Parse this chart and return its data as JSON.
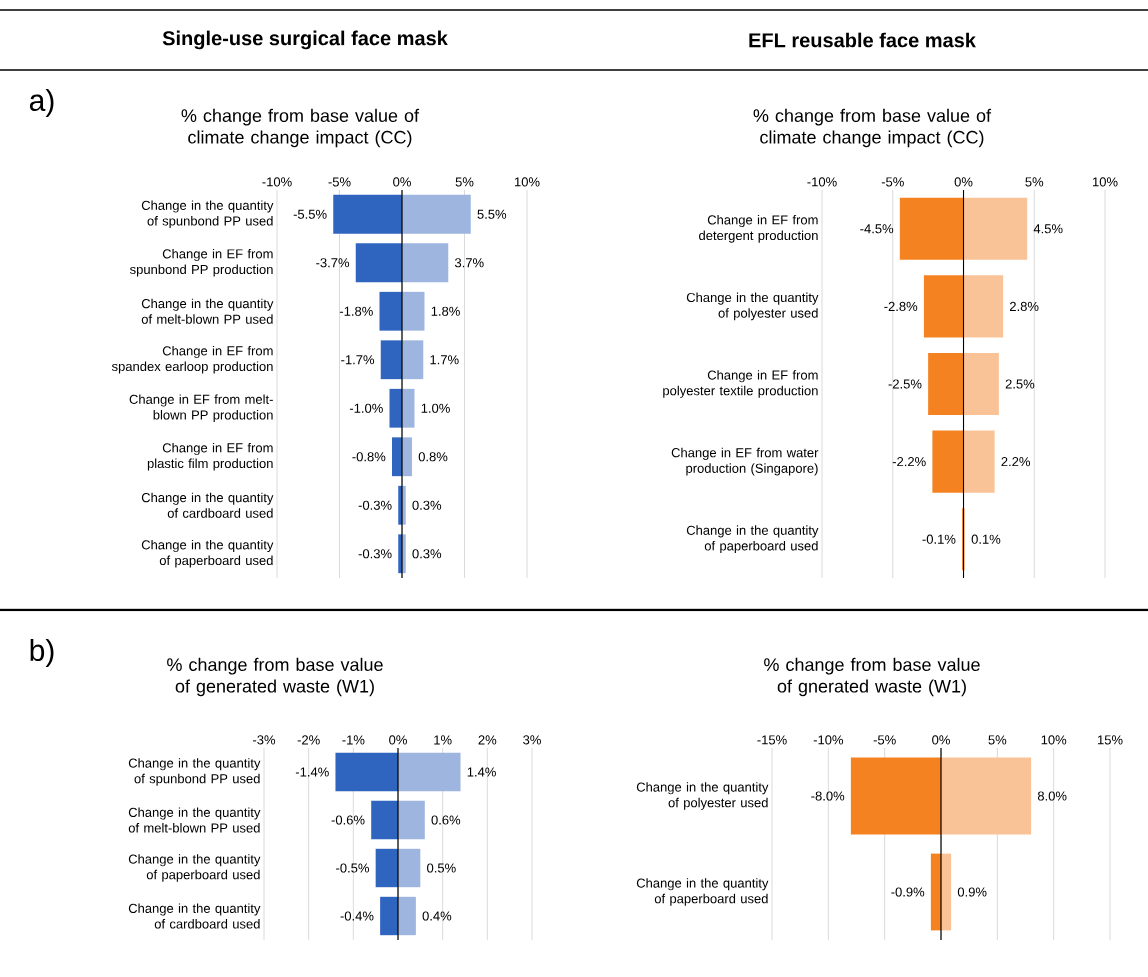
{
  "chart_data": [
    {
      "type": "bar",
      "orientation": "horizontal",
      "stacked": true,
      "title": "% change from base value of climate change impact (CC)",
      "annotations": [
        "a)",
        "Single-use surgical face mask"
      ],
      "categories": [
        "Change in the quantity of spunbond PP used",
        "Change in EF from spunbond PP production",
        "Change in the quantity of melt-blown PP used",
        "Change in EF from spandex earloop production",
        "Change in EF from melt-blown PP production",
        "Change in EF from plastic film production",
        "Change in the quantity of cardboard used",
        "Change in the quantity of paperboard used"
      ],
      "xlim": [
        -10,
        10
      ],
      "xticks": [
        {
          "value": -10,
          "label": "-10%"
        },
        {
          "value": -5,
          "label": "-5%"
        },
        {
          "value": 0,
          "label": "0%"
        },
        {
          "value": 5,
          "label": "5%"
        },
        {
          "value": 10,
          "label": "10%"
        }
      ],
      "grid": "x",
      "series": [
        {
          "color": "#2f64bf",
          "values": [
            -5.5,
            -3.7,
            -1.8,
            -1.7,
            -1.0,
            -0.8,
            -0.3,
            -0.3
          ],
          "value_labels": [
            "-5.5%",
            "-3.7%",
            "-1.8%",
            "-1.7%",
            "-1.0%",
            "-0.8%",
            "-0.3%",
            "-0.3%"
          ]
        },
        {
          "color": "#9db5df",
          "values": [
            5.5,
            3.7,
            1.8,
            1.7,
            1.0,
            0.8,
            0.3,
            0.3
          ],
          "value_labels": [
            "5.5%",
            "3.7%",
            "1.8%",
            "1.7%",
            "1.0%",
            "0.8%",
            "0.3%",
            "0.3%"
          ]
        }
      ]
    },
    {
      "type": "bar",
      "orientation": "horizontal",
      "stacked": true,
      "title": "% change from base value of climate change impact (CC)",
      "annotations": [
        "EFL reusable face mask"
      ],
      "categories": [
        "Change in EF from detergent production",
        "Change in the quantity of polyester used",
        "Change in EF from polyester textile production",
        "Change in EF from water production (Singapore)",
        "Change in the quantity of paperboard used"
      ],
      "xlim": [
        -10,
        10
      ],
      "xticks": [
        {
          "value": -10,
          "label": "-10%"
        },
        {
          "value": -5,
          "label": "-5%"
        },
        {
          "value": 0,
          "label": "0%"
        },
        {
          "value": 5,
          "label": "5%"
        },
        {
          "value": 10,
          "label": "10%"
        }
      ],
      "grid": "x",
      "series": [
        {
          "color": "#f58220",
          "values": [
            -4.5,
            -2.8,
            -2.5,
            -2.2,
            -0.1
          ],
          "value_labels": [
            "-4.5%",
            "-2.8%",
            "-2.5%",
            "-2.2%",
            "-0.1%"
          ]
        },
        {
          "color": "#f9c397",
          "values": [
            4.5,
            2.8,
            2.5,
            2.2,
            0.1
          ],
          "value_labels": [
            "4.5%",
            "2.8%",
            "2.5%",
            "2.2%",
            "0.1%"
          ]
        }
      ]
    },
    {
      "type": "bar",
      "orientation": "horizontal",
      "stacked": true,
      "title": "% change from base value of generated waste (W1)",
      "annotations": [
        "b)"
      ],
      "categories": [
        "Change in the quantity of spunbond PP used",
        "Change in the quantity of melt-blown PP used",
        "Change in the quantity of paperboard used",
        "Change in the quantity of cardboard used"
      ],
      "xlim": [
        -3,
        3
      ],
      "xticks": [
        {
          "value": -3,
          "label": "-3%"
        },
        {
          "value": -2,
          "label": "-2%"
        },
        {
          "value": -1,
          "label": "-1%"
        },
        {
          "value": 0,
          "label": "0%"
        },
        {
          "value": 1,
          "label": "1%"
        },
        {
          "value": 2,
          "label": "2%"
        },
        {
          "value": 3,
          "label": "3%"
        }
      ],
      "grid": "x",
      "series": [
        {
          "color": "#2f64bf",
          "values": [
            -1.4,
            -0.6,
            -0.5,
            -0.4
          ],
          "value_labels": [
            "-1.4%",
            "-0.6%",
            "-0.5%",
            "-0.4%"
          ]
        },
        {
          "color": "#9db5df",
          "values": [
            1.4,
            0.6,
            0.5,
            0.4
          ],
          "value_labels": [
            "1.4%",
            "0.6%",
            "0.5%",
            "0.4%"
          ]
        }
      ]
    },
    {
      "type": "bar",
      "orientation": "horizontal",
      "stacked": true,
      "title": "% change from base value of gnerated waste (W1)",
      "categories": [
        "Change in the quantity of polyester used",
        "Change in the quantity of paperboard used"
      ],
      "xlim": [
        -15,
        15
      ],
      "xticks": [
        {
          "value": -15,
          "label": "-15%"
        },
        {
          "value": -10,
          "label": "-10%"
        },
        {
          "value": -5,
          "label": "-5%"
        },
        {
          "value": 0,
          "label": "0%"
        },
        {
          "value": 5,
          "label": "5%"
        },
        {
          "value": 10,
          "label": "10%"
        },
        {
          "value": 15,
          "label": "15%"
        }
      ],
      "grid": "x",
      "series": [
        {
          "color": "#f58220",
          "values": [
            -8.0,
            -0.9
          ],
          "value_labels": [
            "-8.0%",
            "-0.9%"
          ]
        },
        {
          "color": "#f9c397",
          "values": [
            8.0,
            0.9
          ],
          "value_labels": [
            "8.0%",
            "0.9%"
          ]
        }
      ]
    }
  ]
}
